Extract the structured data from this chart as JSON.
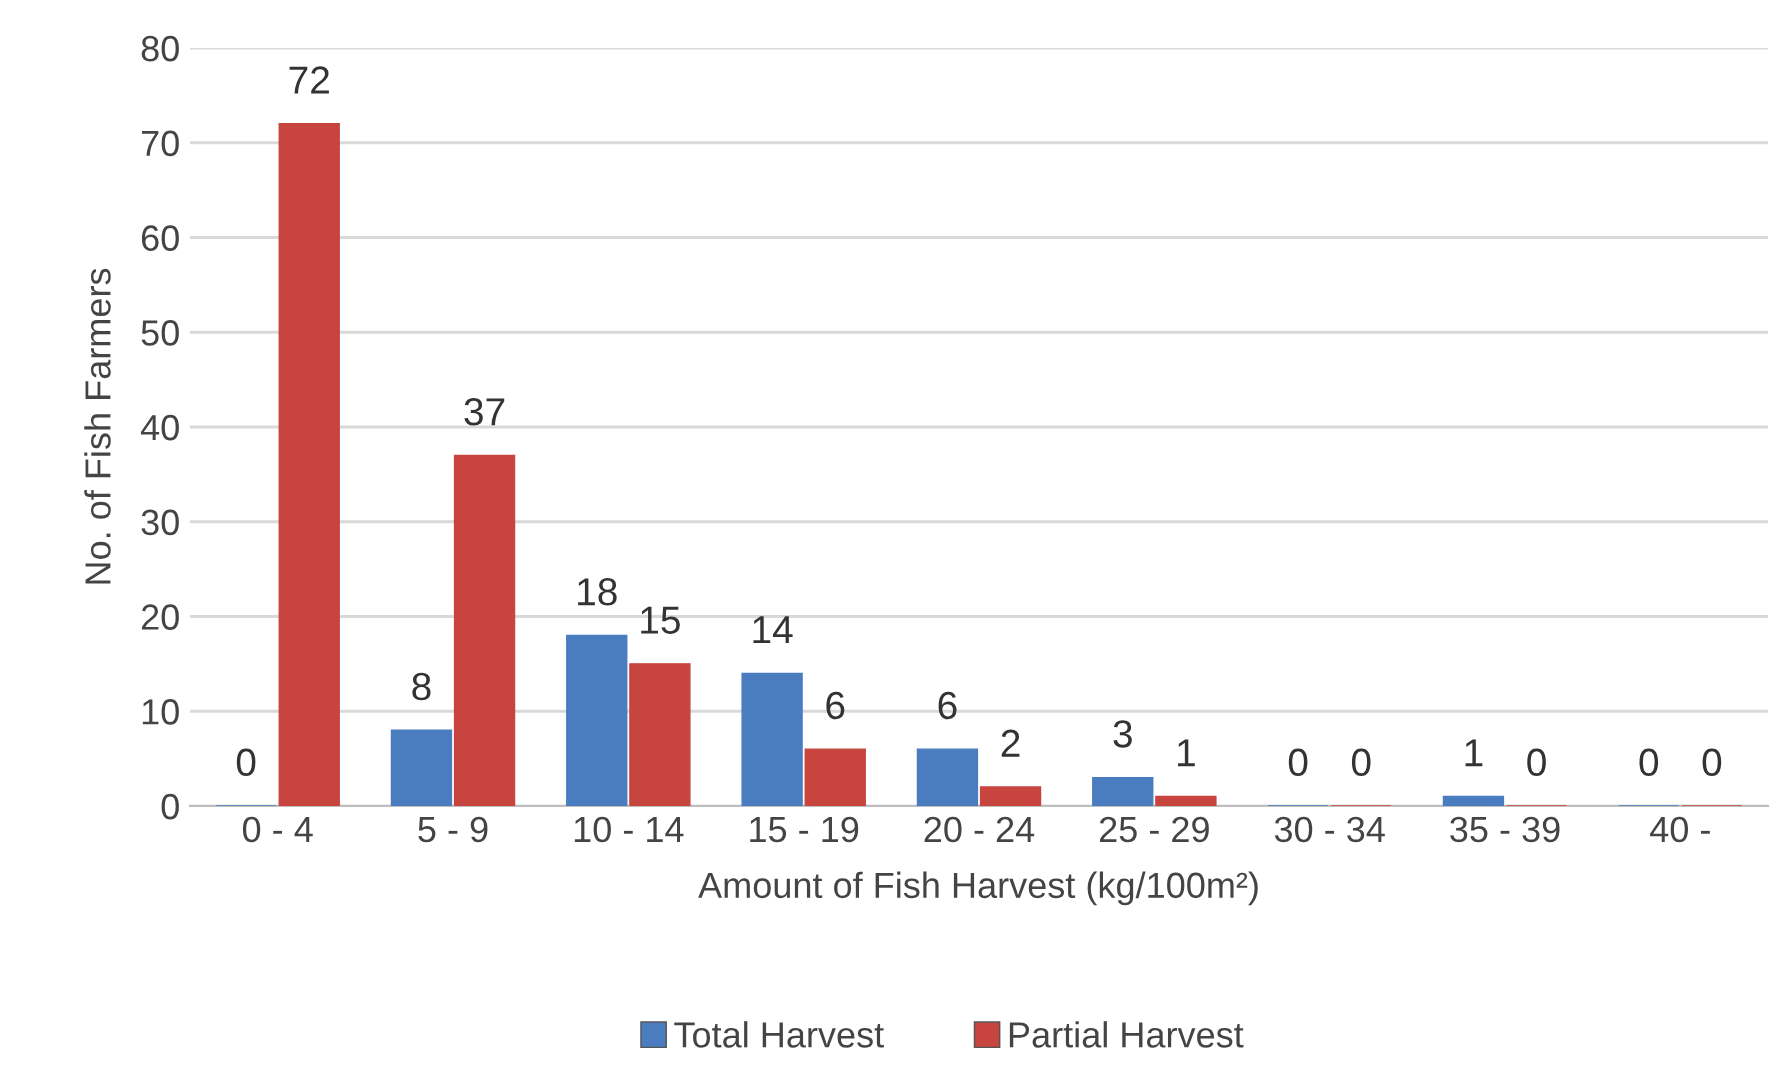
{
  "chart_data": {
    "type": "bar",
    "xlabel": "Amount of Fish Harvest (kg/100m²)",
    "ylabel": "No. of Fish Farmers",
    "categories": [
      "0 - 4",
      "5 - 9",
      "10 - 14",
      "15 - 19",
      "20 - 24",
      "25 - 29",
      "30 - 34",
      "35 - 39",
      "40 -"
    ],
    "series": [
      {
        "name": "Total Harvest",
        "color": "#4a7cc0",
        "values": [
          0,
          8,
          18,
          14,
          6,
          3,
          0,
          1,
          0
        ]
      },
      {
        "name": "Partial Harvest",
        "color": "#c8443f",
        "values": [
          72,
          37,
          15,
          6,
          2,
          1,
          0,
          0,
          0
        ]
      }
    ],
    "ylim": [
      0,
      80
    ],
    "yticks": [
      0,
      10,
      20,
      30,
      40,
      50,
      60,
      70,
      80
    ],
    "grid": "y",
    "legend": "bottom",
    "data_labels": true
  }
}
